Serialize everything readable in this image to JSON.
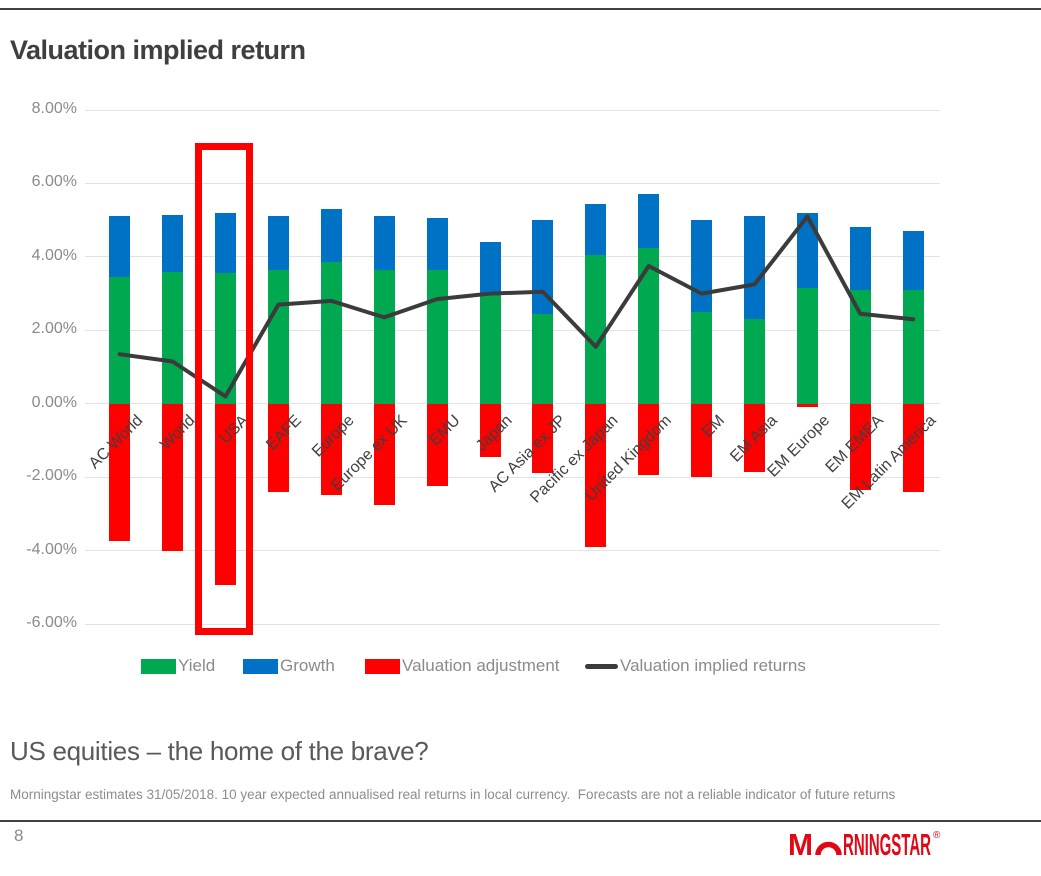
{
  "page": {
    "title": "Valuation implied return",
    "subtitle": "US equities – the home of the brave?",
    "footnote": "Morningstar estimates 31/05/2018. 10 year expected annualised real returns in local currency.  Forecasts are not a reliable indicator of future returns",
    "page_number": "8",
    "logo": {
      "m": "M",
      "rest": "RNINGSTAR",
      "reg": "®",
      "color": "#e30613"
    }
  },
  "chart_data": {
    "type": "bar",
    "subtype": "stacked-bars-with-line-overlay",
    "title": "Valuation implied return",
    "xlabel": "",
    "ylabel": "",
    "ylim": [
      -6,
      8
    ],
    "ytick_step": 2,
    "ytick_labels": [
      "8.00%",
      "6.00%",
      "4.00%",
      "2.00%",
      "0.00%",
      "-2.00%",
      "-4.00%",
      "-6.00%"
    ],
    "grid": "horizontal",
    "legend_position": "bottom",
    "highlighted_category": "USA",
    "categories": [
      "AC World",
      "World",
      "USA",
      "EAFE",
      "Europe",
      "Europe ex UK",
      "EMU",
      "Japan",
      "AC Asia ex JP",
      "Pacific ex Japan",
      "United Kingdom",
      "EM",
      "EM Asia",
      "EM Europe",
      "EM EMEA",
      "EM Latin America"
    ],
    "series": [
      {
        "name": "Yield",
        "type": "bar",
        "color": "#00a94f",
        "values": [
          3.45,
          3.6,
          3.55,
          3.65,
          3.85,
          3.65,
          3.65,
          3.0,
          2.45,
          4.05,
          4.25,
          2.5,
          2.3,
          3.15,
          3.1,
          3.1
        ]
      },
      {
        "name": "Growth",
        "type": "bar",
        "color": "#0072c6",
        "values": [
          1.65,
          1.55,
          1.65,
          1.45,
          1.45,
          1.45,
          1.4,
          1.4,
          2.55,
          1.4,
          1.45,
          2.5,
          2.8,
          2.05,
          1.7,
          1.6
        ]
      },
      {
        "name": "Valuation adjustment",
        "type": "bar",
        "color": "#ff0000",
        "values": [
          -3.75,
          -4.0,
          -4.95,
          -2.4,
          -2.5,
          -2.75,
          -2.25,
          -1.45,
          -1.9,
          -3.9,
          -1.95,
          -2.0,
          -1.85,
          -0.1,
          -2.35,
          -2.4
        ]
      },
      {
        "name": "Valuation implied returns",
        "type": "line",
        "color": "#3b3b3b",
        "values": [
          1.35,
          1.15,
          0.2,
          2.7,
          2.8,
          2.35,
          2.85,
          3.0,
          3.05,
          1.55,
          3.75,
          3.0,
          3.25,
          5.1,
          2.45,
          2.3
        ]
      }
    ]
  }
}
